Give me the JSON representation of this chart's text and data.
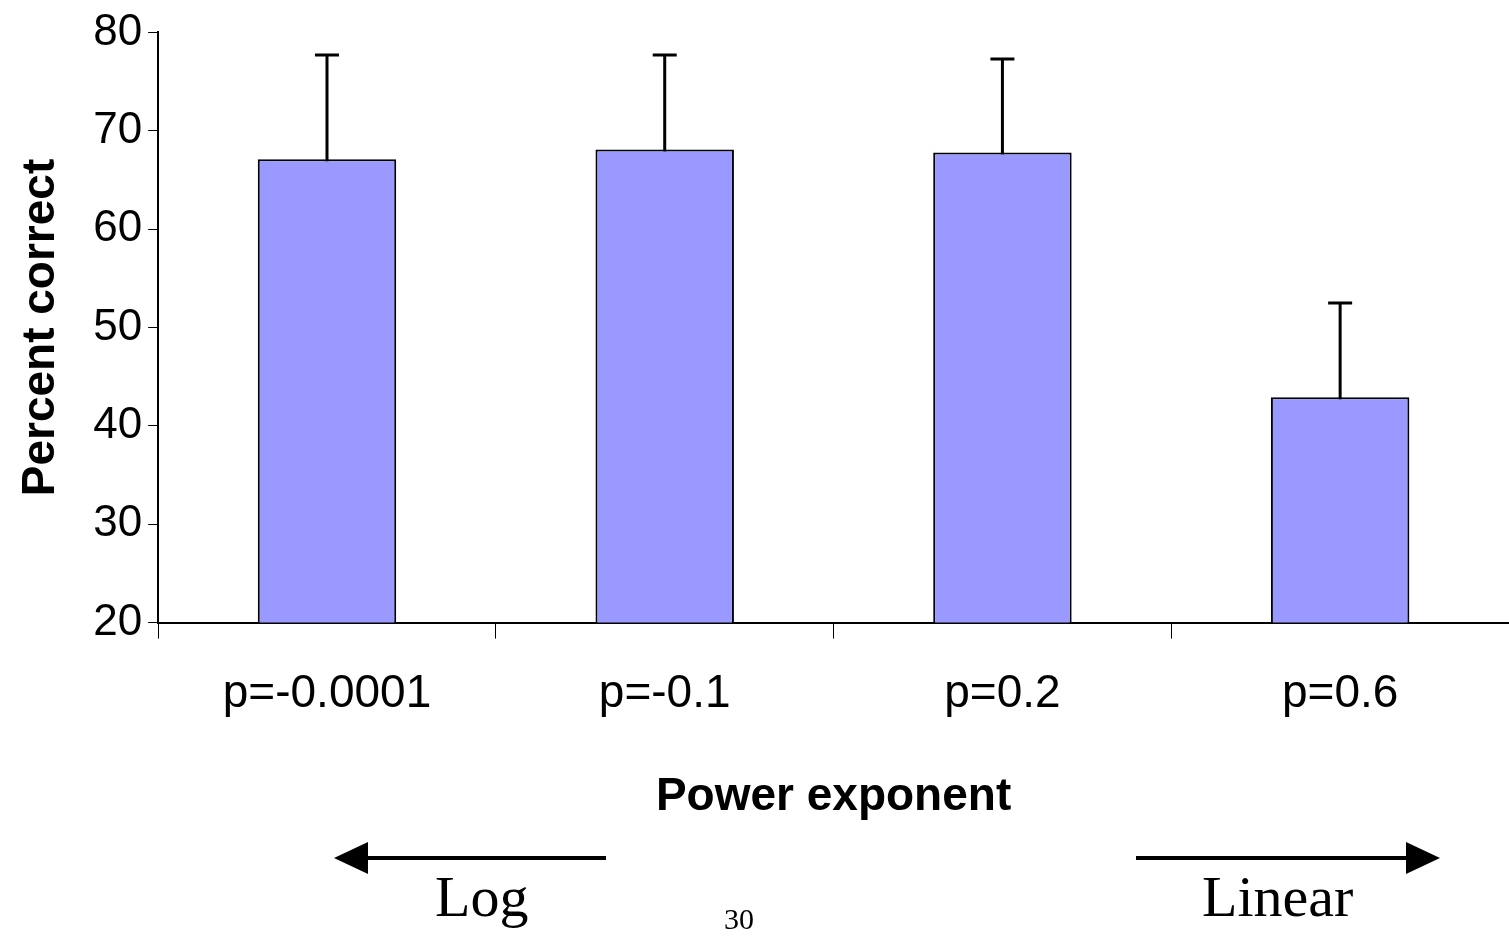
{
  "chart_data": {
    "type": "bar",
    "xlabel": "Power exponent",
    "ylabel": "Percent correct",
    "categories": [
      "p=-0.0001",
      "p=-0.1",
      "p=0.2",
      "p=0.6"
    ],
    "values": [
      67.1,
      68.1,
      67.8,
      42.9
    ],
    "errors": [
      10.6,
      9.6,
      9.5,
      9.6
    ],
    "color": "#9999ff",
    "ylim": [
      20,
      80
    ],
    "yticks": [
      20,
      30,
      40,
      50,
      60,
      70,
      80
    ],
    "grid": false,
    "legend": false,
    "annotations": [
      "Log",
      "Linear",
      "30"
    ]
  }
}
